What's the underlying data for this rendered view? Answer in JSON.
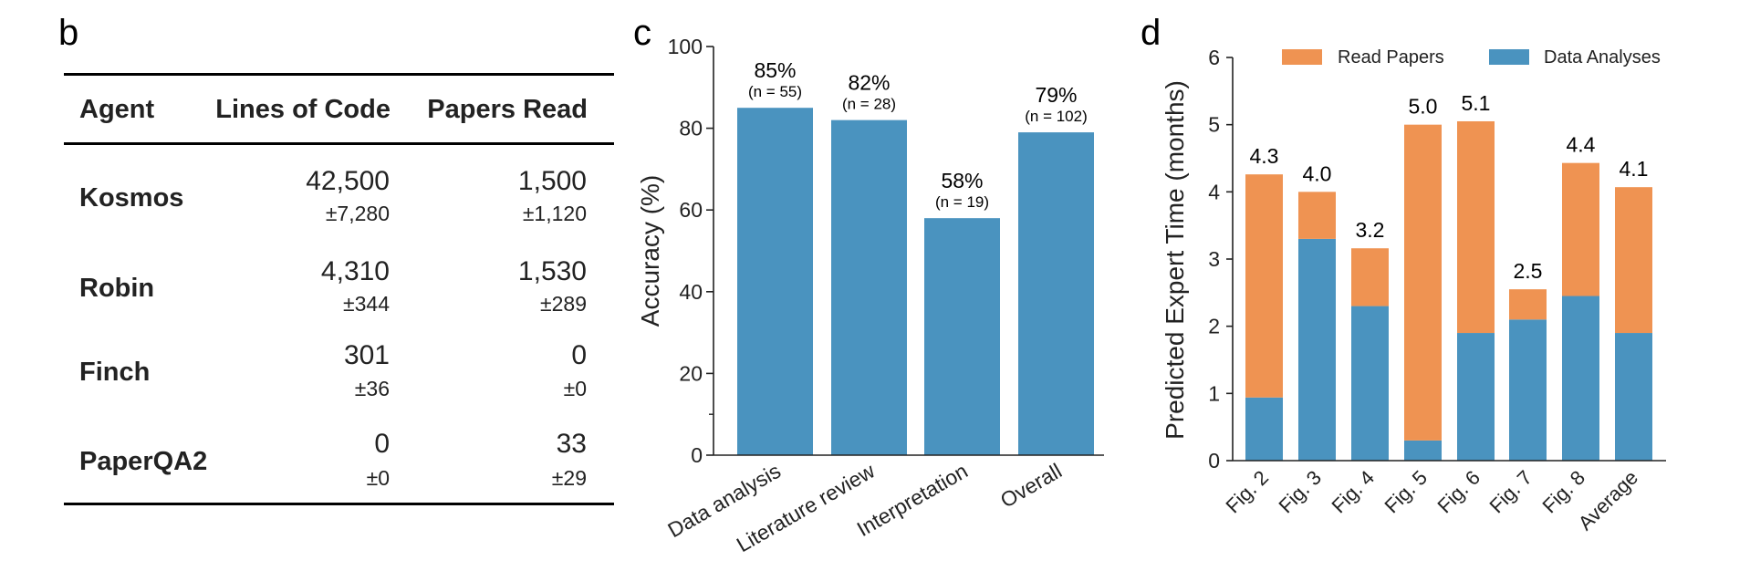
{
  "panels": {
    "b": {
      "letter": "b"
    },
    "c": {
      "letter": "c"
    },
    "d": {
      "letter": "d"
    }
  },
  "table": {
    "headers": [
      "Agent",
      "Lines of Code",
      "Papers Read"
    ],
    "rows": [
      {
        "agent": "Kosmos",
        "loc": "42,500",
        "loc_sd": "±7,280",
        "papers": "1,500",
        "papers_sd": "±1,120"
      },
      {
        "agent": "Robin",
        "loc": "4,310",
        "loc_sd": "±344",
        "papers": "1,530",
        "papers_sd": "±289"
      },
      {
        "agent": "Finch",
        "loc": "301",
        "loc_sd": "±36",
        "papers": "0",
        "papers_sd": "±0"
      },
      {
        "agent": "PaperQA2",
        "loc": "0",
        "loc_sd": "±0",
        "papers": "33",
        "papers_sd": "±29"
      }
    ]
  },
  "colors": {
    "blue": "#4A93BF",
    "orange": "#EF9352",
    "axis": "#222222"
  },
  "chart_data": [
    {
      "type": "bar",
      "panel": "c",
      "title": "",
      "xlabel": "",
      "ylabel": "Accuracy (%)",
      "ylim": [
        0,
        100
      ],
      "yticks": [
        0,
        20,
        40,
        60,
        80,
        100
      ],
      "yminor_ticks": [
        10
      ],
      "categories": [
        "Data analysis",
        "Literature review",
        "Interpretation",
        "Overall"
      ],
      "values": [
        85,
        82,
        58,
        79
      ],
      "value_labels": [
        "85%",
        "82%",
        "58%",
        "79%"
      ],
      "n_labels": [
        "(n = 55)",
        "(n = 28)",
        "(n = 19)",
        "(n = 102)"
      ],
      "color": "#4A93BF",
      "grid": false
    },
    {
      "type": "bar",
      "stacked": true,
      "panel": "d",
      "title": "",
      "xlabel": "",
      "ylabel": "Predicted Expert Time (months)",
      "ylim": [
        0,
        6
      ],
      "yticks": [
        0,
        1,
        2,
        3,
        4,
        5,
        6
      ],
      "categories": [
        "Fig. 2",
        "Fig. 3",
        "Fig. 4",
        "Fig. 5",
        "Fig. 6",
        "Fig. 7",
        "Fig. 8",
        "Average"
      ],
      "series": [
        {
          "name": "Data Analyses",
          "color": "#4A93BF",
          "values": [
            0.94,
            3.3,
            2.3,
            0.3,
            1.9,
            2.1,
            2.45,
            1.9
          ]
        },
        {
          "name": "Read Papers",
          "color": "#EF9352",
          "values": [
            3.32,
            0.7,
            0.86,
            4.7,
            3.15,
            0.45,
            1.98,
            2.17
          ]
        }
      ],
      "total_labels": [
        "4.3",
        "4.0",
        "3.2",
        "5.0",
        "5.1",
        "2.5",
        "4.4",
        "4.1"
      ],
      "legend": {
        "entries": [
          "Read Papers",
          "Data Analyses"
        ],
        "placement": "top"
      },
      "grid": false
    }
  ]
}
